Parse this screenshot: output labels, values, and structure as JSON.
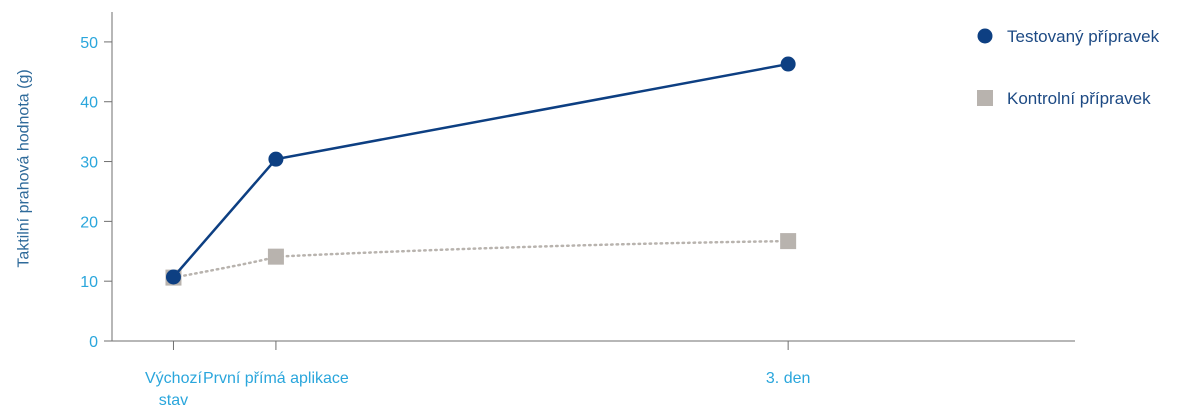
{
  "chart_data": {
    "type": "line",
    "title": "",
    "xlabel": "",
    "ylabel": "Taktilní prahová hodnota (g)",
    "ylim": [
      0,
      55
    ],
    "yticks": [
      0,
      10,
      20,
      30,
      40,
      50
    ],
    "grid": false,
    "legend_position": "top-right",
    "categories": [
      {
        "lines": [
          "Výchozí",
          "stav"
        ]
      },
      {
        "lines": [
          "První přímá aplikace"
        ]
      },
      {
        "lines": [
          "3. den"
        ]
      }
    ],
    "x": [
      0,
      1,
      6
    ],
    "xlim": [
      -0.6,
      8.8
    ],
    "series": [
      {
        "name": "Testovaný přípravek",
        "values": [
          10.7,
          30.4,
          46.3
        ],
        "color": "#0d3f82",
        "marker": "circle",
        "line": "solid"
      },
      {
        "name": "Kontrolní přípravek",
        "values": [
          10.6,
          14.1,
          16.7
        ],
        "color": "#b8b3ae",
        "marker": "square",
        "line": "dotted"
      }
    ]
  }
}
